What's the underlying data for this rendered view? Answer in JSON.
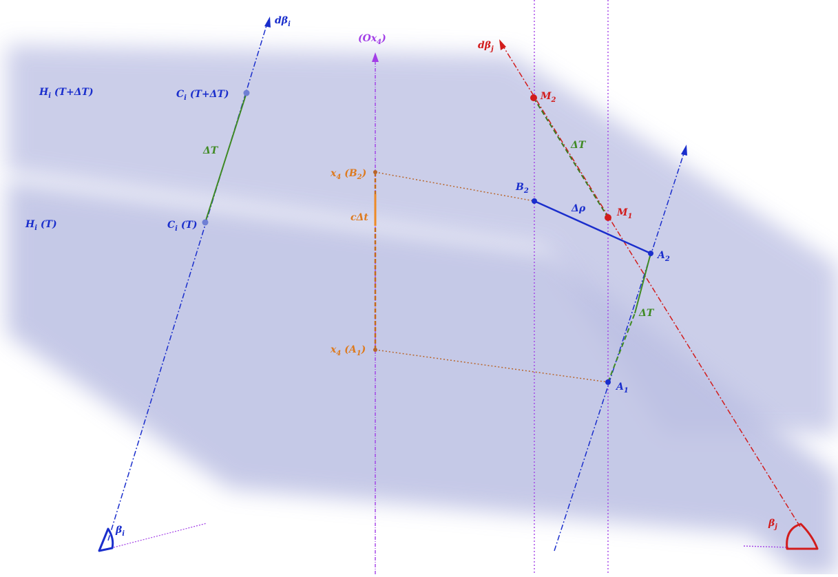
{
  "diagram": {
    "labels": {
      "d_beta_i": {
        "main": "dβ",
        "sub": "i",
        "rest": ""
      },
      "ox4": {
        "main": "(Ox",
        "sub": "4",
        "rest": ")"
      },
      "d_beta_j": {
        "main": "dβ",
        "sub": "j",
        "rest": ""
      },
      "h_i_t_dt": {
        "main": "H",
        "sub": "i",
        "rest": " (T+ΔT)"
      },
      "h_i_t": {
        "main": "H",
        "sub": "i",
        "rest": " (T)"
      },
      "c_i_t_dt": {
        "main": "C",
        "sub": "i",
        "rest": " (T+ΔT)"
      },
      "c_i_t": {
        "main": "C",
        "sub": "i",
        "rest": " (T)"
      },
      "delta_t_left": {
        "main": "ΔT",
        "sub": "",
        "rest": ""
      },
      "x4_b2": {
        "main": "x",
        "sub": "4",
        "rest": " (B",
        "sub2": "2",
        "rest2": ")"
      },
      "x4_a1": {
        "main": "x",
        "sub": "4",
        "rest": " (A",
        "sub2": "1",
        "rest2": ")"
      },
      "c_delta_t": {
        "main": "cΔt",
        "sub": "",
        "rest": ""
      },
      "m2": {
        "main": "M",
        "sub": "2",
        "rest": ""
      },
      "m1": {
        "main": "M",
        "sub": "1",
        "rest": ""
      },
      "delta_t_top": {
        "main": "ΔT",
        "sub": "",
        "rest": ""
      },
      "b2": {
        "main": "B",
        "sub": "2",
        "rest": ""
      },
      "delta_rho": {
        "main": "Δρ",
        "sub": "",
        "rest": ""
      },
      "a2": {
        "main": "A",
        "sub": "2",
        "rest": ""
      },
      "delta_t_right": {
        "main": "ΔT",
        "sub": "",
        "rest": ""
      },
      "a1": {
        "main": "A",
        "sub": "1",
        "rest": ""
      },
      "beta_i": {
        "main": "β",
        "sub": "i",
        "rest": ""
      },
      "beta_j": {
        "main": "β",
        "sub": "j",
        "rest": ""
      }
    },
    "colors": {
      "plane": "#c3c6e6",
      "blue": "#1a2ecc",
      "light_blue": "#6f7fd4",
      "red": "#d21c1c",
      "green": "#3f8a23",
      "orange": "#dd7a1e",
      "purple": "#a23ee6",
      "brown": "#b8652a"
    }
  }
}
